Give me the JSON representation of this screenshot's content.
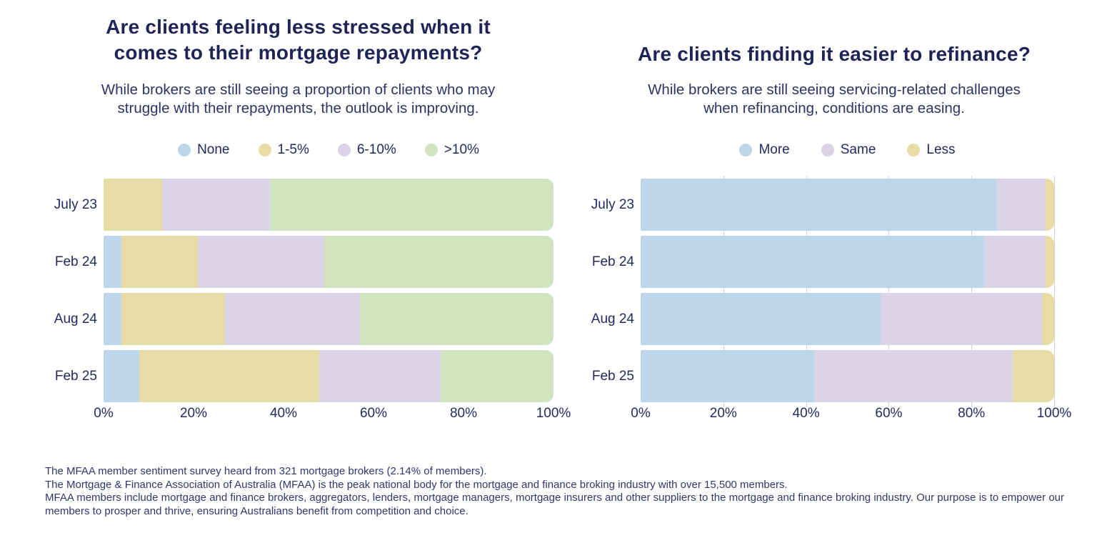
{
  "colors": {
    "title_navy": "#1f2456",
    "text_navy": "#2e3363",
    "series_blue": "#bed6e9",
    "series_tan": "#e8dca6",
    "series_purple": "#dbd3e7",
    "series_green": "#d1e3bf",
    "background": "#ffffff"
  },
  "chart_data": [
    {
      "type": "bar",
      "orientation": "horizontal",
      "stacked": true,
      "units": "percent",
      "title": "Are clients feeling less stressed when it\ncomes to their mortgage repayments?",
      "subtitle": "While brokers are still seeing a proportion of clients who may\nstruggle with their repayments, the outlook is improving.",
      "legend_position": "top",
      "grid": false,
      "categories": [
        "July 23",
        "Feb 24",
        "Aug 24",
        "Feb 25"
      ],
      "series": [
        {
          "name": "None",
          "color": "#bed6e9",
          "values": [
            0,
            4,
            4,
            8
          ]
        },
        {
          "name": "1-5%",
          "color": "#e8dca6",
          "values": [
            13,
            17,
            23,
            40
          ]
        },
        {
          "name": "6-10%",
          "color": "#dbd3e7",
          "values": [
            24,
            28,
            30,
            27
          ]
        },
        {
          "name": ">10%",
          "color": "#d1e3bf",
          "values": [
            63,
            51,
            43,
            25
          ]
        }
      ],
      "xlim": [
        0,
        100
      ],
      "x_ticks": [
        "0%",
        "20%",
        "40%",
        "60%",
        "80%",
        "100%"
      ]
    },
    {
      "type": "bar",
      "orientation": "horizontal",
      "stacked": true,
      "units": "percent",
      "title": "Are clients finding it easier to refinance?",
      "subtitle": "While brokers are still seeing servicing-related challenges\nwhen refinancing, conditions are easing.",
      "legend_position": "top",
      "grid": true,
      "categories": [
        "July 23",
        "Feb 24",
        "Aug 24",
        "Feb 25"
      ],
      "series": [
        {
          "name": "More",
          "color": "#bed6e9",
          "values": [
            86,
            83,
            58,
            42
          ]
        },
        {
          "name": "Same",
          "color": "#dbd3e7",
          "values": [
            12,
            15,
            39,
            48
          ]
        },
        {
          "name": "Less",
          "color": "#e8dca6",
          "values": [
            2,
            2,
            3,
            10
          ]
        }
      ],
      "xlim": [
        0,
        100
      ],
      "x_ticks": [
        "0%",
        "20%",
        "40%",
        "60%",
        "80%",
        "100%"
      ]
    }
  ],
  "footer": {
    "lines": [
      "The MFAA member sentiment survey heard from 321 mortgage brokers (2.14% of members).",
      "The Mortgage & Finance Association of Australia (MFAA) is the peak national body for the mortgage and finance broking industry with over 15,500 members.",
      "MFAA members include mortgage and finance brokers, aggregators, lenders, mortgage managers, mortgage insurers and other suppliers to the mortgage and finance broking industry. Our purpose is to empower our members to prosper and thrive, ensuring Australians benefit from competition and choice."
    ]
  }
}
